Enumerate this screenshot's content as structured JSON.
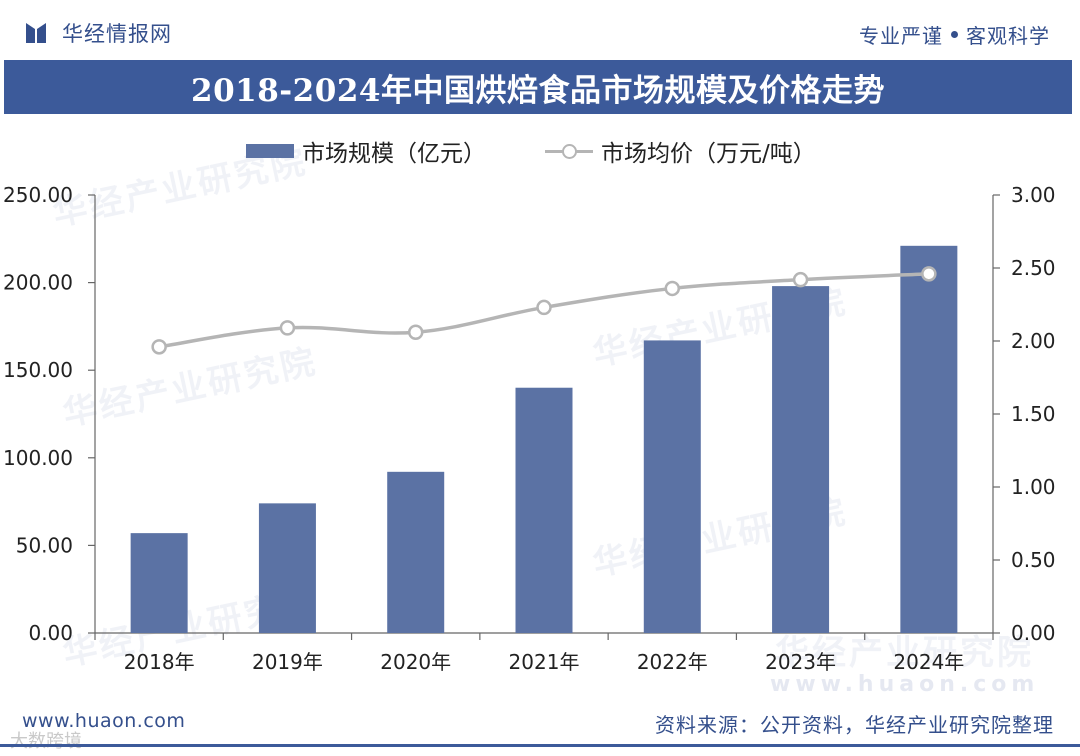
{
  "header": {
    "brand_name": "华经情报网",
    "slogan_left": "专业严谨",
    "slogan_right": "客观科学"
  },
  "title": "2018-2024年中国烘焙食品市场规模及价格走势",
  "legend": {
    "bar_label": "市场规模（亿元）",
    "line_label": "市场均价（万元/吨）"
  },
  "watermarks": {
    "institute": "华经产业研究院",
    "url": "www.huaon.com"
  },
  "footer": {
    "url": "www.huaon.com",
    "source": "资料来源：公开资料，华经产业研究院整理",
    "corner": "大数跨境"
  },
  "colors": {
    "bar": "#5b72a4",
    "line": "#b5b5b5",
    "title_bg": "#3c5a9a",
    "brand": "#344f8c"
  },
  "chart_data": {
    "type": "bar+line",
    "title": "2018-2024年中国烘焙食品市场规模及价格走势",
    "categories": [
      "2018年",
      "2019年",
      "2020年",
      "2021年",
      "2022年",
      "2023年",
      "2024年"
    ],
    "series": [
      {
        "name": "市场规模（亿元）",
        "type": "bar",
        "axis": "left",
        "values": [
          57,
          74,
          92,
          140,
          167,
          198,
          221
        ]
      },
      {
        "name": "市场均价（万元/吨）",
        "type": "line",
        "axis": "right",
        "values": [
          1.96,
          2.09,
          2.06,
          2.23,
          2.36,
          2.42,
          2.46
        ]
      }
    ],
    "y_left": {
      "min": 0,
      "max": 250,
      "ticks": [
        "0.00",
        "50.00",
        "100.00",
        "150.00",
        "200.00",
        "250.00"
      ]
    },
    "y_right": {
      "min": 0,
      "max": 3,
      "ticks": [
        "0.00",
        "0.50",
        "1.00",
        "1.50",
        "2.00",
        "2.50",
        "3.00"
      ]
    },
    "legend_position": "top",
    "grid": false
  }
}
